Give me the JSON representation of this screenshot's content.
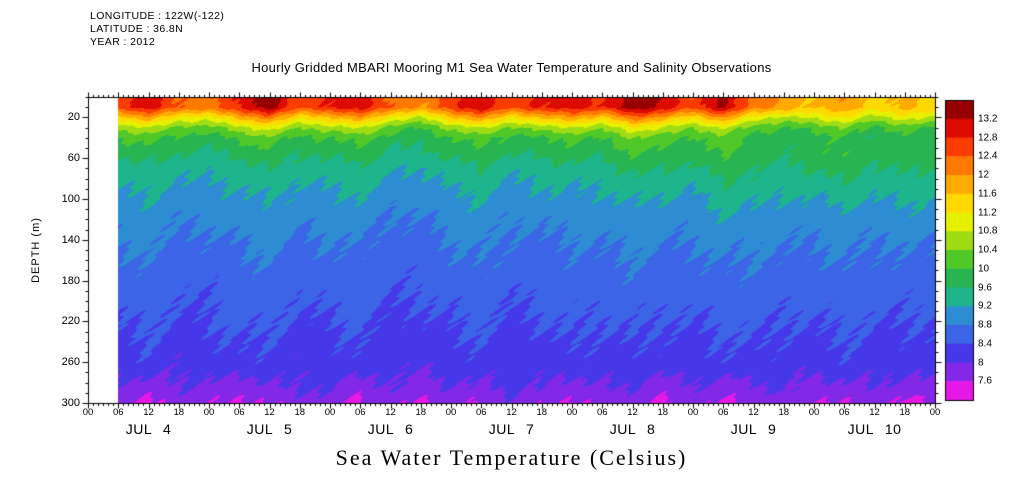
{
  "meta": {
    "longitude": "LONGITUDE : 122W(-122)",
    "latitude": "LATITUDE : 36.8N",
    "year": "YEAR : 2012"
  },
  "title": "Hourly Gridded MBARI Mooring M1 Sea Water Temperature and Salinity Observations",
  "bottom_title": "Sea Water Temperature (Celsius)",
  "chart_data": {
    "type": "heatmap",
    "title": "Hourly Gridded MBARI Mooring M1 Sea Water Temperature and Salinity Observations",
    "subtitle": "Sea Water Temperature (Celsius)",
    "ylabel": "DEPTH (m)",
    "y_ticks": [
      20,
      60,
      100,
      140,
      180,
      220,
      260,
      300
    ],
    "depth_axis_range": [
      0,
      300
    ],
    "time_axis_range_hours": [
      0,
      168
    ],
    "x_hour_ticks": [
      "00",
      "06",
      "12",
      "18",
      "00",
      "06",
      "12",
      "18",
      "00",
      "06",
      "12",
      "18",
      "00",
      "06",
      "12",
      "18",
      "00",
      "06",
      "12",
      "18",
      "00",
      "06",
      "12",
      "18",
      "00",
      "06",
      "12",
      "18",
      "00"
    ],
    "day_labels": [
      "JUL 4",
      "JUL 5",
      "JUL 6",
      "JUL 7",
      "JUL 8",
      "JUL 9",
      "JUL 10"
    ],
    "legend_position": "right",
    "grid_on": false,
    "colorbar": {
      "levels": [
        7.6,
        8,
        8.4,
        8.8,
        9.2,
        9.6,
        10,
        10.4,
        10.8,
        11.2,
        11.6,
        12,
        12.4,
        12.8,
        13.2
      ],
      "labels": [
        "13.2",
        "12.8",
        "12.4",
        "12",
        "11.6",
        "11.2",
        "10.8",
        "10.4",
        "10",
        "9.6",
        "9.2",
        "8.8",
        "8.4",
        "8",
        "7.6"
      ],
      "colors": [
        "#e618e6",
        "#8228e6",
        "#4638e8",
        "#3c64e6",
        "#2d8cd2",
        "#1eb48c",
        "#28b450",
        "#50c828",
        "#a0dc14",
        "#e6f000",
        "#ffd800",
        "#ffaa00",
        "#ff7800",
        "#fa3c00",
        "#dc0a00",
        "#960000"
      ]
    },
    "grid": {
      "hours": [
        0,
        6,
        12,
        18,
        24,
        30,
        36,
        42,
        48,
        54,
        60,
        66,
        72,
        78,
        84,
        90,
        96,
        102,
        108,
        114,
        120,
        126,
        132,
        138,
        144,
        150,
        156,
        162,
        168
      ],
      "depths": [
        10,
        20,
        30,
        40,
        55,
        70,
        90,
        115,
        145,
        180,
        220,
        260,
        285,
        300
      ],
      "temperature": [
        [
          null,
          12.6,
          13.0,
          12.4,
          12.2,
          12.9,
          13.4,
          12.5,
          12.8,
          13.1,
          12.3,
          12.0,
          12.6,
          13.2,
          12.4,
          12.9,
          13.0,
          12.7,
          13.5,
          13.1,
          12.5,
          13.3,
          12.2,
          11.9,
          11.6,
          11.9,
          11.4,
          11.7,
          11.5
        ],
        [
          null,
          11.4,
          11.9,
          11.2,
          11.0,
          11.8,
          12.2,
          11.3,
          11.6,
          12.0,
          11.1,
          10.8,
          11.5,
          12.1,
          11.2,
          11.7,
          11.9,
          11.5,
          12.3,
          11.9,
          11.3,
          12.1,
          11.0,
          10.7,
          10.9,
          11.2,
          10.6,
          11.0,
          10.8
        ],
        [
          null,
          10.5,
          10.8,
          10.3,
          10.2,
          10.7,
          11.0,
          10.4,
          10.6,
          10.9,
          10.2,
          10.0,
          10.5,
          10.9,
          10.3,
          10.6,
          10.8,
          10.5,
          11.1,
          10.8,
          10.4,
          10.9,
          10.2,
          10.0,
          10.1,
          10.4,
          9.9,
          10.2,
          10.0
        ],
        [
          null,
          10.0,
          10.2,
          9.9,
          9.8,
          10.1,
          10.3,
          9.9,
          10.0,
          10.2,
          9.8,
          9.7,
          10.0,
          10.2,
          9.8,
          10.0,
          10.1,
          10.0,
          10.4,
          10.2,
          9.9,
          10.3,
          9.8,
          9.7,
          9.8,
          10.0,
          9.6,
          9.9,
          9.7
        ],
        [
          null,
          9.7,
          9.8,
          9.6,
          9.5,
          9.7,
          9.9,
          9.6,
          9.7,
          9.8,
          9.5,
          9.5,
          9.7,
          9.9,
          9.6,
          9.7,
          9.8,
          9.7,
          10.0,
          9.9,
          9.7,
          10.1,
          9.8,
          9.7,
          9.8,
          10.0,
          9.7,
          9.9,
          9.8
        ],
        [
          null,
          9.4,
          9.5,
          9.3,
          9.3,
          9.4,
          9.6,
          9.4,
          9.4,
          9.5,
          9.3,
          9.2,
          9.4,
          9.6,
          9.3,
          9.4,
          9.5,
          9.4,
          9.7,
          9.6,
          9.5,
          9.8,
          9.6,
          9.5,
          9.6,
          9.8,
          9.5,
          9.7,
          9.6
        ],
        [
          null,
          9.2,
          9.3,
          9.1,
          9.1,
          9.2,
          9.3,
          9.1,
          9.2,
          9.3,
          9.0,
          9.0,
          9.2,
          9.3,
          9.1,
          9.2,
          9.2,
          9.2,
          9.4,
          9.3,
          9.2,
          9.5,
          9.4,
          9.3,
          9.3,
          9.5,
          9.3,
          9.4,
          9.3
        ],
        [
          null,
          9.0,
          9.1,
          8.9,
          8.9,
          9.0,
          9.1,
          8.9,
          9.0,
          9.0,
          8.8,
          8.8,
          9.0,
          9.1,
          8.9,
          8.9,
          9.0,
          9.0,
          9.1,
          9.0,
          9.0,
          9.2,
          9.1,
          9.0,
          9.0,
          9.1,
          9.0,
          9.1,
          9.0
        ],
        [
          null,
          8.8,
          8.9,
          8.7,
          8.7,
          8.8,
          8.9,
          8.7,
          8.8,
          8.8,
          8.6,
          8.6,
          8.8,
          8.9,
          8.7,
          8.7,
          8.8,
          8.8,
          8.9,
          8.8,
          8.8,
          8.9,
          8.9,
          8.8,
          8.8,
          8.9,
          8.8,
          8.8,
          8.8
        ],
        [
          null,
          8.6,
          8.7,
          8.5,
          8.5,
          8.6,
          8.7,
          8.5,
          8.6,
          8.6,
          8.5,
          8.5,
          8.6,
          8.7,
          8.5,
          8.6,
          8.6,
          8.6,
          8.7,
          8.6,
          8.6,
          8.7,
          8.7,
          8.6,
          8.6,
          8.7,
          8.6,
          8.6,
          8.6
        ],
        [
          null,
          8.4,
          8.5,
          8.3,
          8.4,
          8.5,
          8.5,
          8.3,
          8.4,
          8.5,
          8.3,
          8.3,
          8.4,
          8.5,
          8.3,
          8.4,
          8.5,
          8.4,
          8.5,
          8.4,
          8.4,
          8.5,
          8.5,
          8.4,
          8.4,
          8.5,
          8.4,
          8.4,
          8.4
        ],
        [
          null,
          8.2,
          8.3,
          8.1,
          8.2,
          8.3,
          8.3,
          8.1,
          8.2,
          8.3,
          8.1,
          8.1,
          8.2,
          8.3,
          8.1,
          8.2,
          8.3,
          8.2,
          8.3,
          8.2,
          8.2,
          8.3,
          8.3,
          8.2,
          8.2,
          8.3,
          8.2,
          8.2,
          8.2
        ],
        [
          null,
          7.9,
          7.8,
          8.0,
          7.9,
          7.8,
          7.9,
          8.1,
          8.0,
          7.8,
          8.0,
          7.8,
          8.0,
          7.9,
          8.1,
          8.0,
          7.8,
          8.0,
          8.0,
          7.8,
          8.0,
          7.8,
          7.9,
          8.1,
          7.8,
          7.9,
          8.0,
          7.8,
          7.9
        ],
        [
          null,
          7.7,
          7.5,
          7.8,
          7.7,
          7.5,
          7.6,
          7.9,
          7.7,
          7.5,
          7.8,
          7.5,
          7.8,
          7.6,
          7.9,
          7.7,
          7.5,
          7.8,
          7.7,
          7.5,
          7.8,
          7.5,
          7.7,
          7.9,
          7.5,
          7.6,
          7.8,
          7.5,
          7.6
        ]
      ]
    }
  }
}
